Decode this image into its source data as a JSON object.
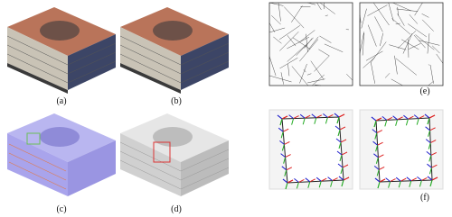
{
  "figure": {
    "labels": [
      "(a)",
      "(b)",
      "(c)",
      "(d)",
      "(e)",
      "(f)"
    ]
  }
}
